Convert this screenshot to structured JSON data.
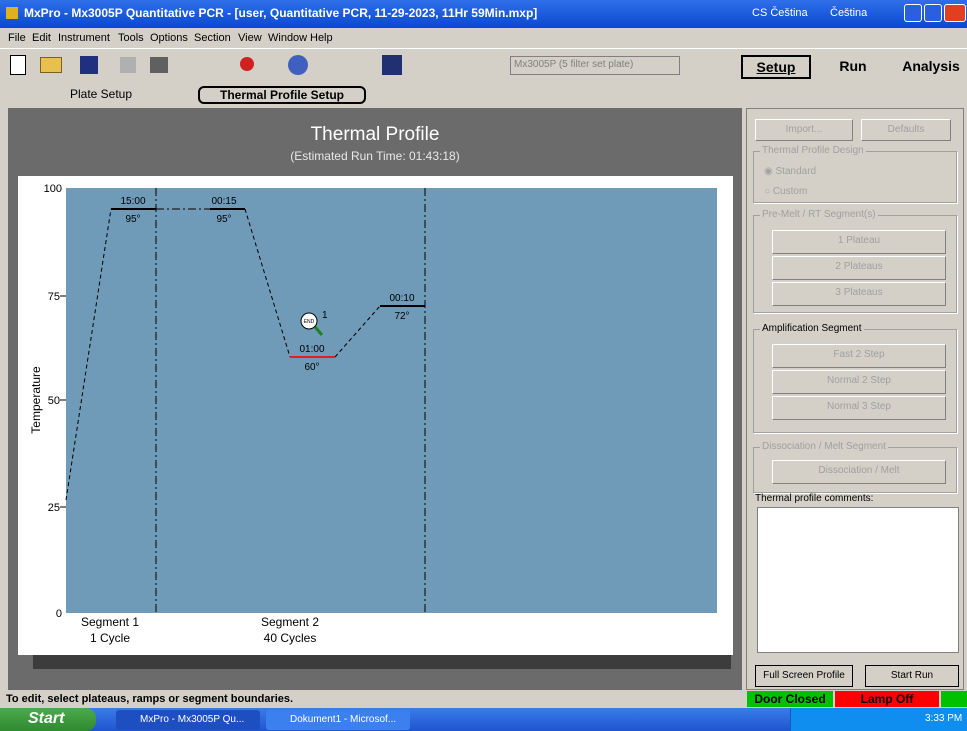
{
  "window": {
    "title": "MxPro - Mx3005P Quantitative PCR - [user, Quantitative PCR, 11-29-2023, 11Hr 59Min.mxp]",
    "lang1": "CS Čeština",
    "lang2": "Čeština"
  },
  "menu": [
    "File",
    "Edit",
    "Instrument",
    "Tools",
    "Options",
    "Section",
    "View",
    "Window",
    "Help"
  ],
  "toolbar": {
    "plate_type": "Mx3005P (5 filter set plate)",
    "sections": [
      "Setup",
      "Run",
      "Analysis"
    ]
  },
  "tabs": [
    "Plate Setup",
    "Thermal Profile Setup"
  ],
  "profile": {
    "title": "Thermal Profile",
    "subtitle": "(Estimated Run Time: 01:43:18)",
    "y_label": "Temperature",
    "y_ticks": [
      "100",
      "75",
      "50",
      "25",
      "0"
    ],
    "plateaus": [
      {
        "time": "15:00",
        "temp": "95°"
      },
      {
        "time": "00:15",
        "temp": "95°"
      },
      {
        "time": "01:00",
        "temp": "60°"
      },
      {
        "time": "00:10",
        "temp": "72°"
      }
    ],
    "end_icon": "END",
    "end_marker": "1",
    "segments": [
      {
        "name": "Segment 1",
        "cycles": "1 Cycle"
      },
      {
        "name": "Segment 2",
        "cycles": "40 Cycles"
      }
    ]
  },
  "panel": {
    "import": "Import...",
    "defaults": "Defaults",
    "design": {
      "title": "Thermal Profile Design",
      "options": [
        "Standard",
        "Custom"
      ]
    },
    "premelt": {
      "title": "Pre-Melt / RT Segment(s)",
      "buttons": [
        "1 Plateau",
        "2 Plateaus",
        "3 Plateaus"
      ]
    },
    "amplification": {
      "title": "Amplification Segment",
      "buttons": [
        "Fast 2 Step",
        "Normal 2 Step",
        "Normal 3 Step"
      ]
    },
    "dissociation": {
      "title": "Dissociation / Melt Segment",
      "buttons": [
        "Dissociation / Melt"
      ]
    },
    "comments_label": "Thermal profile comments:",
    "full_screen": "Full Screen Profile",
    "start_run": "Start Run"
  },
  "status": {
    "hint": "To edit, select plateaus, ramps or segment boundaries.",
    "door": "Door Closed",
    "lamp": "Lamp Off"
  },
  "taskbar": {
    "start": "Start",
    "tasks": [
      "MxPro - Mx3005P Qu...",
      "Dokument1 - Microsof..."
    ],
    "clock": "3:33 PM"
  }
}
